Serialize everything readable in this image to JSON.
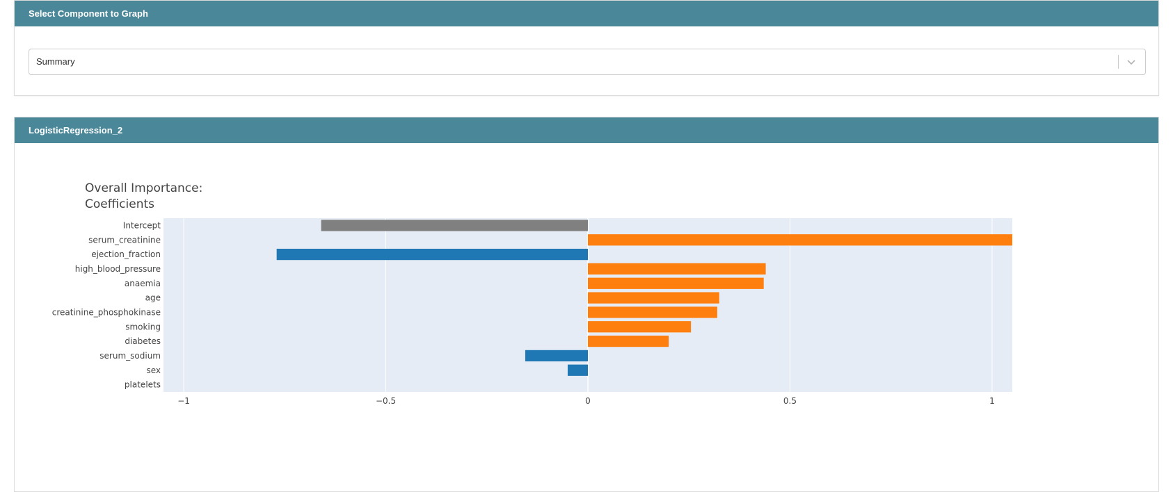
{
  "select_card": {
    "header": "Select Component to Graph",
    "dropdown_value": "Summary"
  },
  "chart_card": {
    "header": "LogisticRegression_2"
  },
  "chart_data": {
    "type": "bar",
    "orientation": "horizontal",
    "title_line1": "Overall Importance:",
    "title_line2": "Coefficients",
    "xlabel": "",
    "ylabel": "",
    "xlim": [
      -1.05,
      1.05
    ],
    "xticks": [
      -1,
      -0.5,
      0,
      0.5,
      1
    ],
    "xtick_labels": [
      "−1",
      "−0.5",
      "0",
      "0.5",
      "1"
    ],
    "grid": true,
    "categories": [
      "Intercept",
      "serum_creatinine",
      "ejection_fraction",
      "high_blood_pressure",
      "anaemia",
      "age",
      "creatinine_phosphokinase",
      "smoking",
      "diabetes",
      "serum_sodium",
      "sex",
      "platelets"
    ],
    "values": [
      -0.66,
      1.08,
      -0.77,
      0.44,
      0.435,
      0.325,
      0.32,
      0.255,
      0.2,
      -0.155,
      -0.05,
      0.0
    ],
    "colors": {
      "intercept": "#808080",
      "positive": "#ff7f0e",
      "negative": "#1f77b4",
      "plot_bg": "#e5ecf6",
      "header_bg": "#4a8799"
    }
  }
}
